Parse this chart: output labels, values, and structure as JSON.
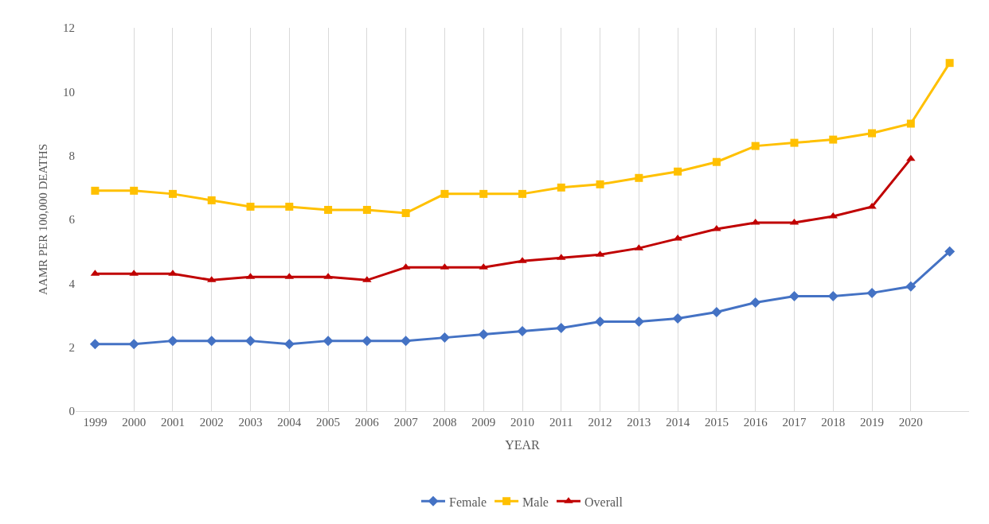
{
  "chart_data": {
    "type": "line",
    "xlabel": "YEAR",
    "ylabel": "AAMR PER 100,000 DEATHS",
    "categories": [
      "1999",
      "2000",
      "2001",
      "2002",
      "2003",
      "2004",
      "2005",
      "2006",
      "2007",
      "2008",
      "2009",
      "2010",
      "2011",
      "2012",
      "2013",
      "2014",
      "2015",
      "2016",
      "2017",
      "2018",
      "2019",
      "2020",
      null
    ],
    "series": [
      {
        "name": "Female",
        "color": "#4472c4",
        "marker": "diamond",
        "values": [
          2.1,
          2.1,
          2.2,
          2.2,
          2.2,
          2.1,
          2.2,
          2.2,
          2.2,
          2.3,
          2.4,
          2.5,
          2.6,
          2.8,
          2.8,
          2.9,
          3.1,
          3.4,
          3.6,
          3.6,
          3.7,
          3.9,
          5.0
        ]
      },
      {
        "name": "Male",
        "color": "#ffc000",
        "marker": "square",
        "values": [
          6.9,
          6.9,
          6.8,
          6.6,
          6.4,
          6.4,
          6.3,
          6.3,
          6.2,
          6.8,
          6.8,
          6.8,
          7.0,
          7.1,
          7.3,
          7.5,
          7.8,
          8.3,
          8.4,
          8.5,
          8.7,
          9.0,
          10.9
        ]
      },
      {
        "name": "Overall",
        "color": "#c00000",
        "marker": "triangle",
        "values": [
          4.3,
          4.3,
          4.3,
          4.1,
          4.2,
          4.2,
          4.2,
          4.1,
          4.5,
          4.5,
          4.5,
          4.7,
          4.8,
          4.9,
          5.1,
          5.4,
          5.7,
          5.9,
          5.9,
          6.1,
          6.4,
          7.9,
          null
        ]
      }
    ],
    "ylim": [
      0,
      12
    ],
    "yticks": [
      0,
      2,
      4,
      6,
      8,
      10,
      12
    ],
    "grid": "x",
    "legend": "bottom",
    "line_style": "solid"
  }
}
